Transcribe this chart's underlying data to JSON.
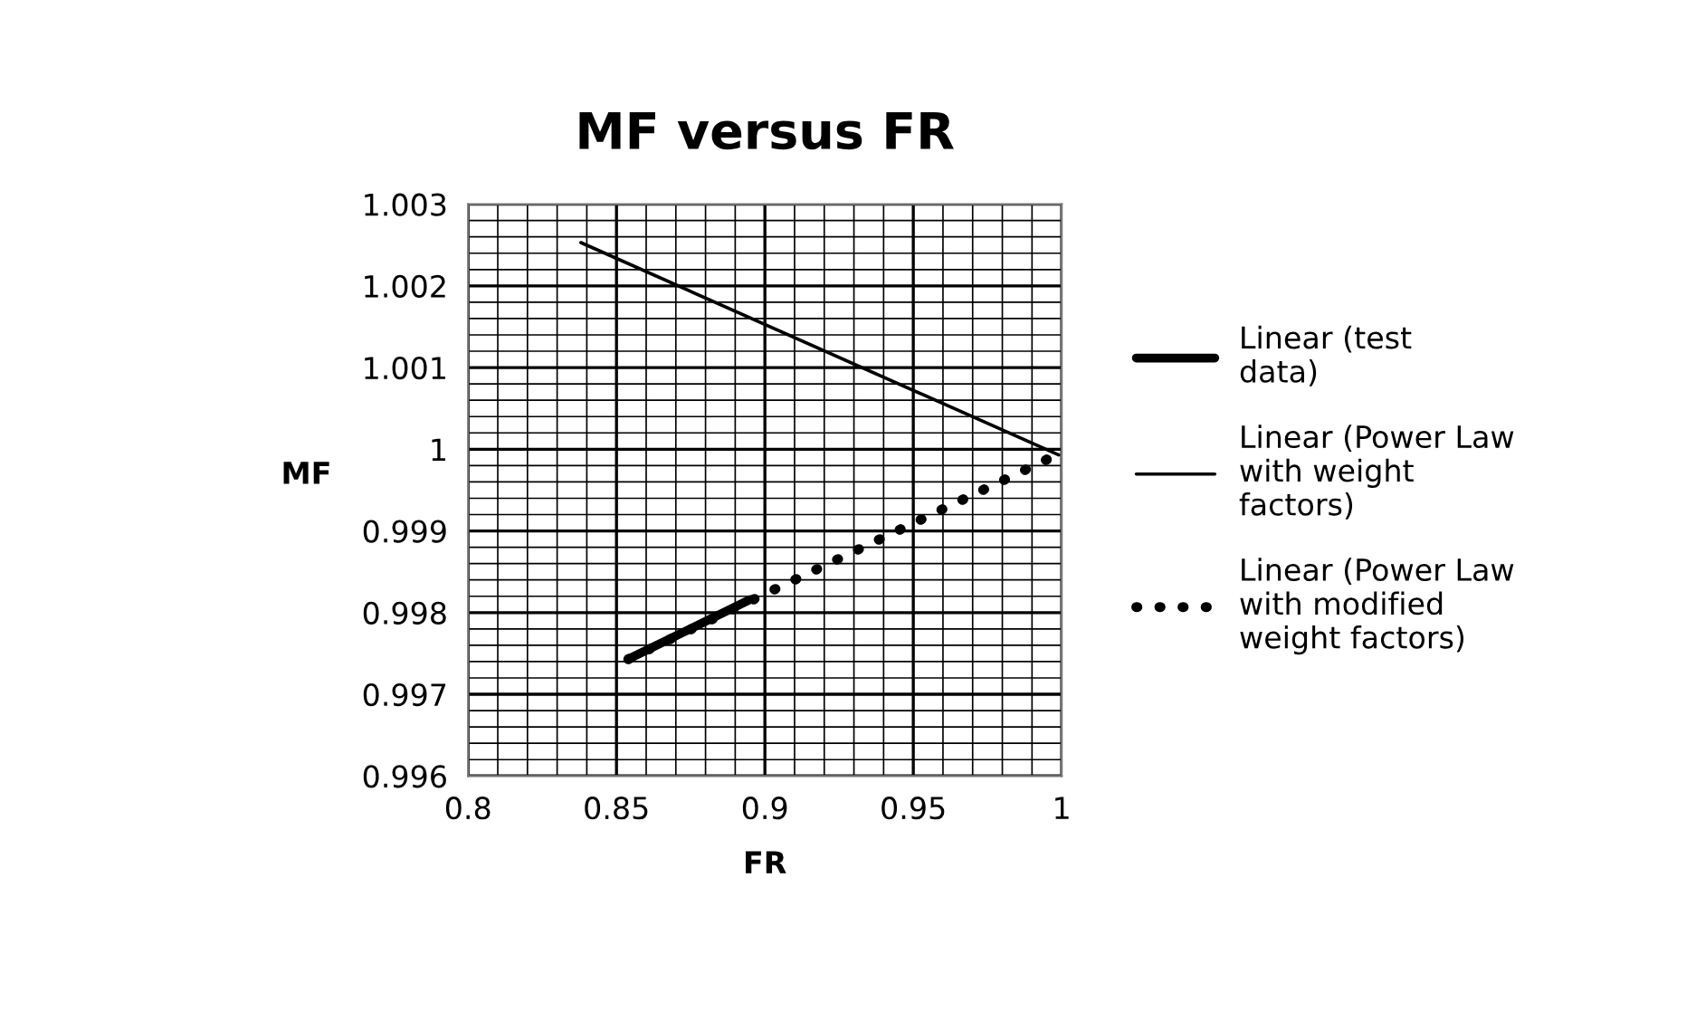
{
  "chart_data": {
    "type": "line",
    "title": "MF versus FR",
    "xlabel": "FR",
    "ylabel": "MF",
    "xlim": [
      0.8,
      1.0
    ],
    "xticks": [
      0.8,
      0.85,
      0.9,
      0.95,
      {
        "value": 1.0,
        "label": "1"
      }
    ],
    "ylim": [
      0.996,
      1.003
    ],
    "yticks": [
      0.996,
      0.997,
      0.998,
      0.999,
      {
        "value": 1.0,
        "label": "1"
      },
      1.001,
      1.002,
      1.003
    ],
    "grid": true,
    "legend": "right",
    "marker": "none",
    "series": [
      {
        "name": "Linear (test\ndata)",
        "color": "#000000",
        "x": [
          0.854,
          0.895
        ],
        "values": [
          0.99743,
          0.99816
        ],
        "line_style": "solid"
      },
      {
        "name": "Linear (Power Law\nwith weight\nfactors)",
        "color": "#000000",
        "x": [
          0.838,
          0.999
        ],
        "values": [
          1.00253,
          0.99993
        ],
        "line_style": "solid"
      },
      {
        "name": "Linear (Power Law\nwith modified\nweight factors)",
        "color": "#000000",
        "x": [
          0.854,
          0.9976
        ],
        "values": [
          0.99743,
          0.99992
        ],
        "line_style": "dotted"
      }
    ]
  }
}
